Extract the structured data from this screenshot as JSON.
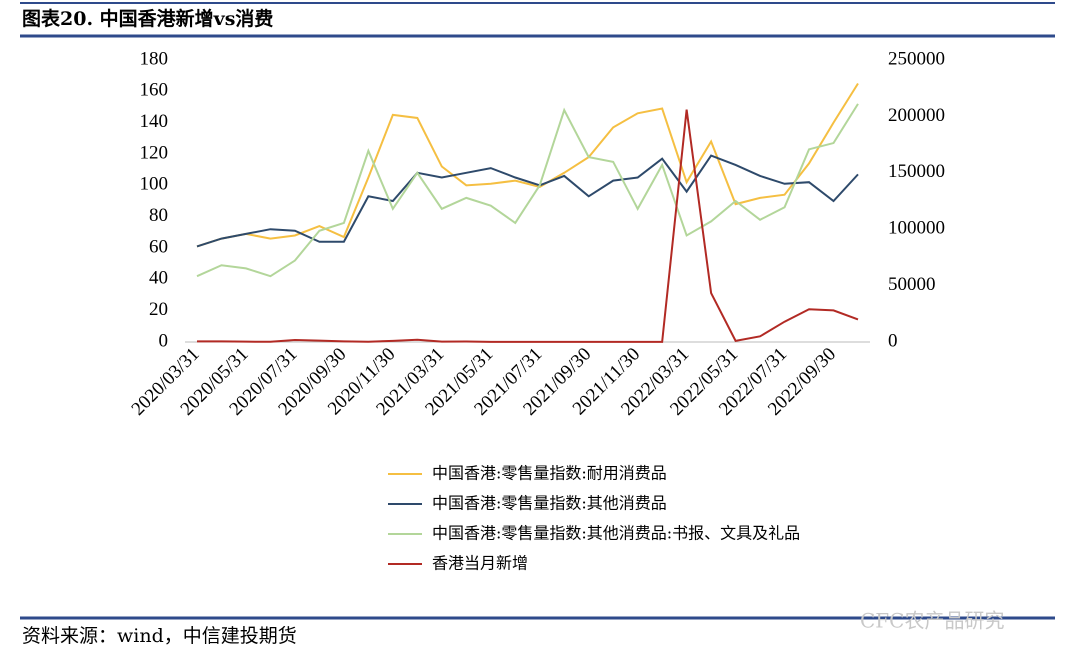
{
  "title": "图表20. 中国香港新增vs消费",
  "source": "资料来源：wind，中信建投期货",
  "watermark": "CFC农产品研究",
  "chart_data": {
    "type": "line",
    "categories": [
      "2020/03/31",
      null,
      "2020/05/31",
      null,
      "2020/07/31",
      null,
      "2020/09/30",
      null,
      "2020/11/30",
      null,
      "2021/03/31",
      null,
      "2021/05/31",
      null,
      "2021/07/31",
      null,
      "2021/09/30",
      null,
      "2021/11/30",
      null,
      "2022/03/31",
      null,
      "2022/05/31",
      null,
      "2022/07/31",
      null,
      "2022/09/30",
      null
    ],
    "series": [
      {
        "name": "中国香港:零售量指数:耐用消费品",
        "color": "#f5bf42",
        "values": [
          61,
          66,
          69,
          66,
          68,
          74,
          67,
          105,
          145,
          143,
          112,
          100,
          101,
          103,
          99,
          108,
          118,
          137,
          146,
          149,
          102,
          128,
          88,
          92,
          94,
          114,
          140,
          165
        ]
      },
      {
        "name": "中国香港:零售量指数:其他消费品",
        "color": "#2e4a6b",
        "values": [
          61,
          66,
          69,
          72,
          71,
          64,
          64,
          93,
          90,
          108,
          105,
          108,
          111,
          105,
          100,
          106,
          93,
          103,
          105,
          117,
          96,
          119,
          113,
          106,
          101,
          102,
          90,
          107
        ]
      },
      {
        "name": "中国香港:零售量指数:其他消费品:书报、文具及礼品",
        "color": "#b3d69a",
        "values": [
          42,
          49,
          47,
          42,
          52,
          71,
          76,
          122,
          85,
          108,
          85,
          92,
          87,
          76,
          100,
          148,
          118,
          115,
          85,
          113,
          68,
          77,
          90,
          78,
          86,
          123,
          127,
          152
        ]
      },
      {
        "name": "香港当月新增",
        "color": "#b22a24",
        "axis": "y2",
        "values": [
          500,
          500,
          300,
          200,
          1800,
          1200,
          500,
          200,
          1000,
          2000,
          300,
          400,
          100,
          100,
          100,
          100,
          100,
          100,
          100,
          100,
          206000,
          43400,
          1000,
          5000,
          18000,
          29000,
          28000,
          20000
        ]
      }
    ],
    "ylim": [
      0,
      180
    ],
    "yticks": [
      0,
      20,
      40,
      60,
      80,
      100,
      120,
      140,
      160,
      180
    ],
    "y2lim": [
      0,
      250000
    ],
    "y2ticks": [
      0,
      50000,
      100000,
      150000,
      200000,
      250000
    ]
  }
}
